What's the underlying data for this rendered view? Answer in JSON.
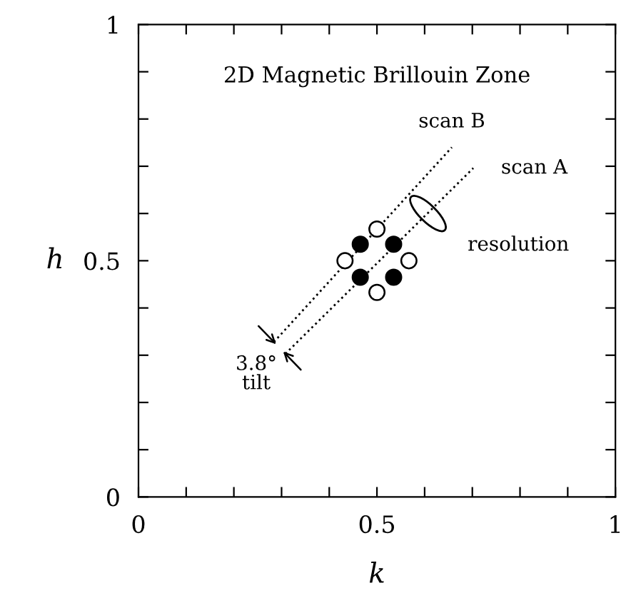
{
  "chart_data": {
    "type": "scatter",
    "title": "2D Magnetic Brillouin Zone",
    "xlabel": "k",
    "ylabel": "h",
    "xlim": [
      0,
      1
    ],
    "ylim": [
      0,
      1
    ],
    "xticks": [
      0,
      {
        "value": 0.1,
        "label": null
      },
      {
        "value": 0.2,
        "label": null
      },
      {
        "value": 0.3,
        "label": null
      },
      {
        "value": 0.4,
        "label": null
      },
      0.5,
      {
        "value": 0.6,
        "label": null
      },
      {
        "value": 0.7,
        "label": null
      },
      {
        "value": 0.8,
        "label": null
      },
      {
        "value": 0.9,
        "label": null
      },
      1
    ],
    "yticks": [
      0,
      {
        "value": 0.1,
        "label": null
      },
      {
        "value": 0.2,
        "label": null
      },
      {
        "value": 0.3,
        "label": null
      },
      {
        "value": 0.4,
        "label": null
      },
      0.5,
      {
        "value": 0.6,
        "label": null
      },
      {
        "value": 0.7,
        "label": null
      },
      {
        "value": 0.8,
        "label": null
      },
      {
        "value": 0.9,
        "label": null
      },
      1
    ],
    "grid": false,
    "marker": "circle",
    "series": [
      {
        "color": "#000000",
        "x": [
          0.465,
          0.535,
          0.465,
          0.535
        ],
        "values": [
          0.535,
          0.535,
          0.465,
          0.465
        ]
      },
      {
        "color": "#ffffff",
        "x": [
          0.5,
          0.433,
          0.567,
          0.5
        ],
        "values": [
          0.567,
          0.5,
          0.5,
          0.433
        ]
      },
      {
        "type": "line",
        "marker": "none",
        "color": "#000000",
        "line_style": "dotted",
        "x": [
          0.284,
          0.657
        ],
        "values": [
          0.328,
          0.74
        ]
      },
      {
        "type": "line",
        "marker": "none",
        "color": "#000000",
        "line_style": "dotted",
        "x": [
          0.308,
          0.702
        ],
        "values": [
          0.303,
          0.696
        ]
      }
    ],
    "annotations": [
      {
        "text": "scan B",
        "x": 0.657,
        "y": 0.74
      },
      {
        "text": "scan A",
        "x": 0.702,
        "y": 0.696
      },
      {
        "text": "resolution",
        "x": 0.607,
        "y": 0.6
      },
      "3.8°\ntilt"
    ]
  }
}
